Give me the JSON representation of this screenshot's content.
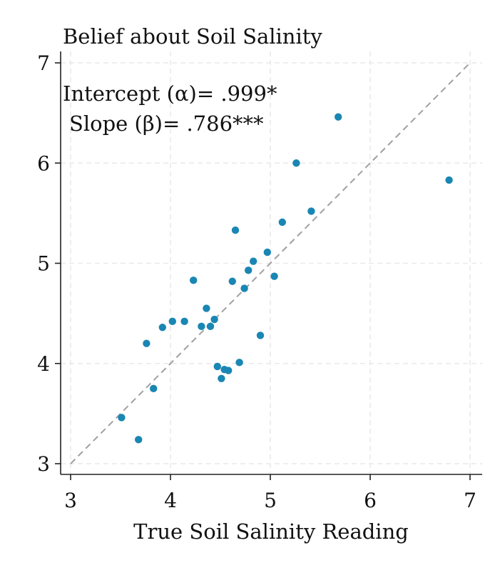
{
  "chart_data": {
    "type": "scatter",
    "title": "Belief about Soil Salinity",
    "xlabel": "True Soil Salinity Reading",
    "ylabel": "",
    "xlim": [
      3,
      7
    ],
    "ylim": [
      3,
      7
    ],
    "xticks": [
      3,
      4,
      5,
      6,
      7
    ],
    "yticks": [
      3,
      4,
      5,
      6,
      7
    ],
    "grid": true,
    "reference_line": {
      "style": "dashed",
      "from": [
        3,
        3
      ],
      "to": [
        7,
        7
      ]
    },
    "annotations": [
      "Intercept (α)= .999*",
      "Slope (β)= .786***"
    ],
    "points": [
      {
        "x": 3.51,
        "y": 3.46
      },
      {
        "x": 3.68,
        "y": 3.24
      },
      {
        "x": 3.76,
        "y": 4.2
      },
      {
        "x": 3.83,
        "y": 3.75
      },
      {
        "x": 3.92,
        "y": 4.36
      },
      {
        "x": 4.02,
        "y": 4.42
      },
      {
        "x": 4.14,
        "y": 4.42
      },
      {
        "x": 4.23,
        "y": 4.83
      },
      {
        "x": 4.31,
        "y": 4.37
      },
      {
        "x": 4.36,
        "y": 4.55
      },
      {
        "x": 4.4,
        "y": 4.37
      },
      {
        "x": 4.44,
        "y": 4.44
      },
      {
        "x": 4.47,
        "y": 3.97
      },
      {
        "x": 4.51,
        "y": 3.85
      },
      {
        "x": 4.54,
        "y": 3.94
      },
      {
        "x": 4.58,
        "y": 3.93
      },
      {
        "x": 4.62,
        "y": 4.82
      },
      {
        "x": 4.65,
        "y": 5.33
      },
      {
        "x": 4.69,
        "y": 4.01
      },
      {
        "x": 4.74,
        "y": 4.75
      },
      {
        "x": 4.78,
        "y": 4.93
      },
      {
        "x": 4.83,
        "y": 5.02
      },
      {
        "x": 4.9,
        "y": 4.28
      },
      {
        "x": 4.97,
        "y": 5.11
      },
      {
        "x": 5.04,
        "y": 4.87
      },
      {
        "x": 5.12,
        "y": 5.41
      },
      {
        "x": 5.26,
        "y": 6.0
      },
      {
        "x": 5.41,
        "y": 5.52
      },
      {
        "x": 5.68,
        "y": 6.46
      },
      {
        "x": 6.79,
        "y": 5.83
      }
    ],
    "colors": {
      "points": "#1a86b3",
      "axis": "#222222",
      "grid": "#e9e9e9",
      "reference_line": "#a0a0a0"
    }
  }
}
